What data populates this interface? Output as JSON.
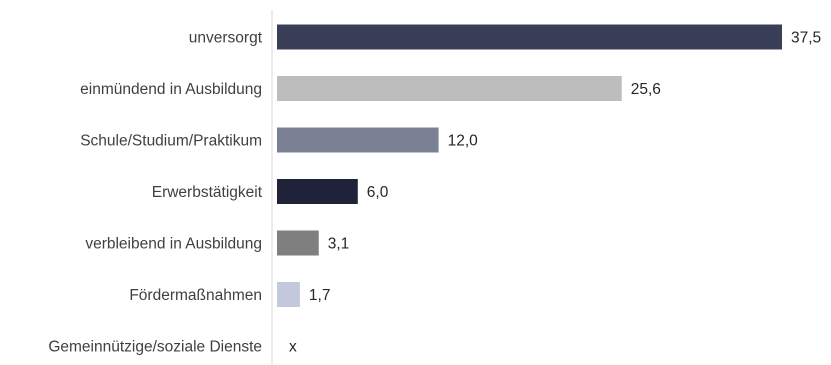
{
  "chart_data": {
    "type": "bar",
    "orientation": "horizontal",
    "title": "",
    "xlabel": "",
    "ylabel": "",
    "xlim": [
      0,
      37.5
    ],
    "grid": false,
    "legend": "none",
    "categories": [
      "unversorgt",
      "einmündend in Ausbildung",
      "Schule/Studium/Praktikum",
      "Erwerbstätigkeit",
      "verbleibend in Ausbildung",
      "Fördermaßnahmen",
      "Gemeinnützige/soziale Dienste"
    ],
    "values": [
      37.5,
      25.6,
      12.0,
      6.0,
      3.1,
      1.7,
      null
    ],
    "value_labels": [
      "37,5",
      "25,6",
      "12,0",
      "6,0",
      "3,1",
      "1,7",
      "x"
    ],
    "colors": [
      "#3a3f58",
      "#bdbdbd",
      "#7b8194",
      "#1f2238",
      "#7f7f7f",
      "#c3c9dc",
      "#ffffff"
    ]
  }
}
